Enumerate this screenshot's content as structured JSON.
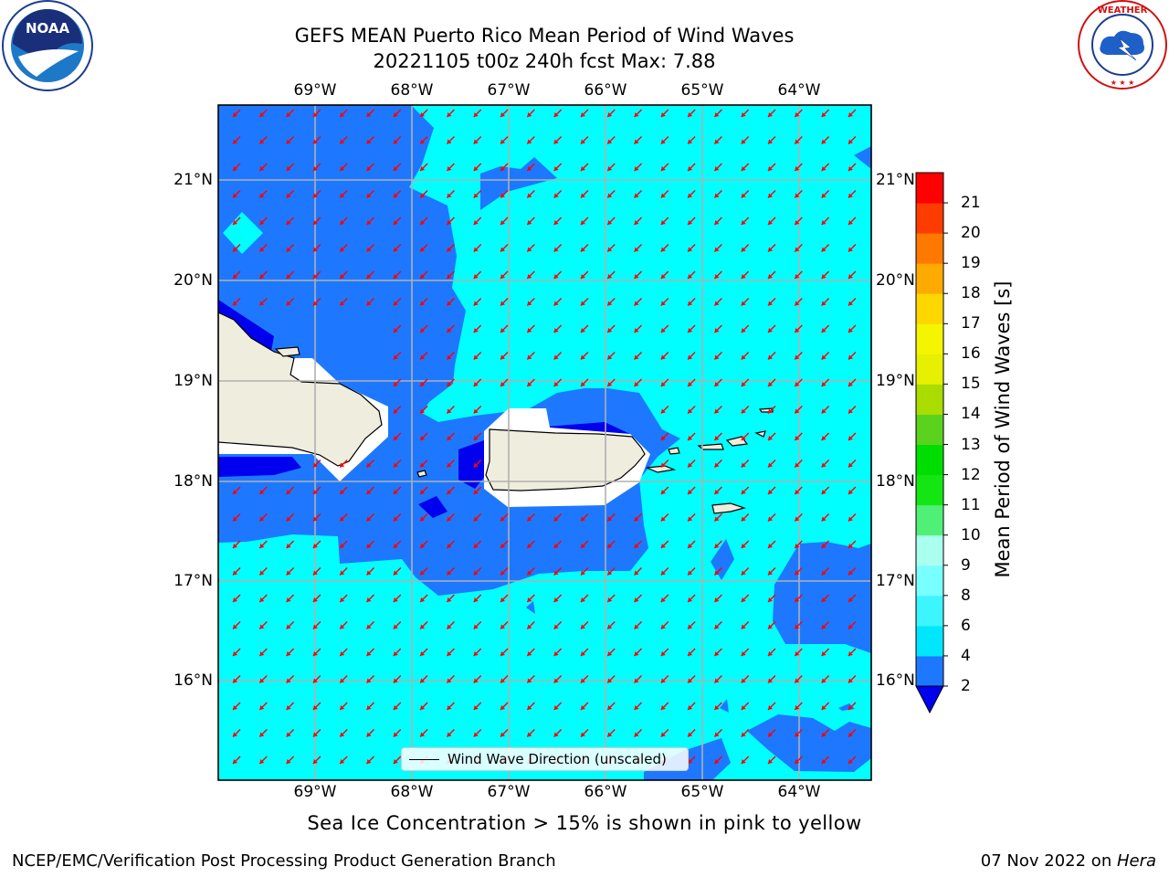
{
  "title": {
    "line1": "GEFS MEAN Puerto Rico Mean Period of Wind Waves",
    "line2": "20221105 t00z 240h fcst   Max: 7.88"
  },
  "axes": {
    "lon_ticks": [
      "69°W",
      "68°W",
      "67°W",
      "66°W",
      "65°W",
      "64°W"
    ],
    "lat_ticks": [
      "21°N",
      "20°N",
      "19°N",
      "18°N",
      "17°N",
      "16°N"
    ]
  },
  "legend": {
    "label": "Wind Wave Direction (unscaled)"
  },
  "colorbar": {
    "title": "Mean Period of Wind Waves [s]",
    "labels": [
      "2",
      "4",
      "6",
      "8",
      "9",
      "10",
      "11",
      "12",
      "13",
      "14",
      "15",
      "16",
      "17",
      "18",
      "19",
      "20",
      "21"
    ],
    "colors": [
      "#1e78ff",
      "#00e6ff",
      "#3cf5ff",
      "#78ffff",
      "#aaffee",
      "#50f078",
      "#14e614",
      "#00dd00",
      "#5ad21e",
      "#aadc00",
      "#e6f000",
      "#f5f500",
      "#ffd700",
      "#ffaa00",
      "#ff7800",
      "#ff3c00",
      "#ff0000"
    ],
    "under_color": "#0000ee"
  },
  "note": "Sea Ice Concentration > 15% is shown in pink to yellow",
  "footer": {
    "left": "NCEP/EMC/Verification Post Processing Product Generation Branch",
    "right_prefix": "07 Nov 2022 on ",
    "right_host": "Hera"
  },
  "logos": {
    "left": "NOAA",
    "right": "NATIONAL WEATHER SERVICE"
  },
  "map_colors": {
    "ocean_light": "#00ffff",
    "ocean_mid": "#1e78ff",
    "ocean_deep": "#0000ee",
    "land": "#efedde",
    "arrow": "#ff0000"
  }
}
